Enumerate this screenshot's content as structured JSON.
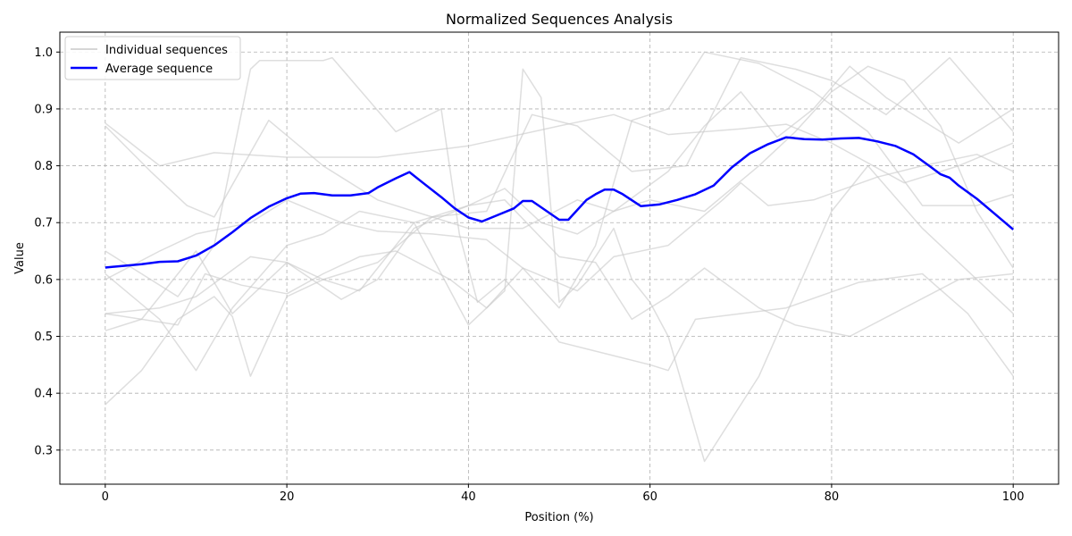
{
  "chart_data": {
    "type": "line",
    "title": "Normalized Sequences Analysis",
    "xlabel": "Position (%)",
    "ylabel": "Value",
    "xlim": [
      -5,
      105
    ],
    "ylim": [
      0.24,
      1.035
    ],
    "xticks": [
      0,
      20,
      40,
      60,
      80,
      100
    ],
    "yticks": [
      0.3,
      0.4,
      0.5,
      0.6,
      0.7,
      0.8,
      0.9,
      1.0
    ],
    "grid": true,
    "legend_position": "upper-left",
    "legend": [
      "Individual sequences",
      "Average sequence"
    ],
    "colors": {
      "individual": "#c8c8c8",
      "average": "#0000ff",
      "grid": "#b0b0b0"
    },
    "series": [
      {
        "values": [
          [
            0,
            0.875
          ],
          [
            6,
            0.8
          ],
          [
            12,
            0.823
          ],
          [
            20,
            0.815
          ],
          [
            30,
            0.815
          ],
          [
            40,
            0.835
          ],
          [
            50,
            0.87
          ],
          [
            56,
            0.89
          ],
          [
            62,
            0.855
          ],
          [
            70,
            0.865
          ],
          [
            75,
            0.873
          ],
          [
            80,
            0.84
          ],
          [
            88,
            0.77
          ],
          [
            94,
            0.8
          ],
          [
            100,
            0.84
          ]
        ]
      },
      {
        "values": [
          [
            0,
            0.87
          ],
          [
            5,
            0.79
          ],
          [
            9,
            0.73
          ],
          [
            12,
            0.71
          ],
          [
            18,
            0.88
          ],
          [
            24,
            0.8
          ],
          [
            30,
            0.74
          ],
          [
            36,
            0.71
          ],
          [
            42,
            0.72
          ],
          [
            47,
            0.89
          ],
          [
            52,
            0.87
          ],
          [
            58,
            0.79
          ],
          [
            64,
            0.8
          ],
          [
            70,
            0.99
          ],
          [
            76,
            0.97
          ],
          [
            80,
            0.95
          ],
          [
            86,
            0.89
          ],
          [
            93,
            0.99
          ],
          [
            100,
            0.86
          ]
        ]
      },
      {
        "values": [
          [
            0,
            0.65
          ],
          [
            8,
            0.57
          ],
          [
            12,
            0.66
          ],
          [
            16,
            0.97
          ],
          [
            17,
            0.985
          ],
          [
            24,
            0.985
          ],
          [
            25,
            0.99
          ],
          [
            32,
            0.86
          ],
          [
            37,
            0.9
          ],
          [
            39,
            0.68
          ],
          [
            41,
            0.56
          ],
          [
            44,
            0.6
          ],
          [
            49,
            0.51
          ],
          [
            50,
            0.49
          ],
          [
            55,
            0.47
          ],
          [
            60,
            0.45
          ],
          [
            62,
            0.44
          ],
          [
            65,
            0.53
          ],
          [
            75,
            0.55
          ],
          [
            83,
            0.595
          ],
          [
            90,
            0.61
          ],
          [
            95,
            0.54
          ],
          [
            100,
            0.43
          ]
        ]
      },
      {
        "values": [
          [
            0,
            0.54
          ],
          [
            4,
            0.53
          ],
          [
            8,
            0.52
          ],
          [
            11,
            0.61
          ],
          [
            15,
            0.59
          ],
          [
            20,
            0.575
          ],
          [
            24,
            0.61
          ],
          [
            28,
            0.64
          ],
          [
            32,
            0.65
          ],
          [
            38,
            0.6
          ],
          [
            42,
            0.55
          ],
          [
            46,
            0.62
          ],
          [
            52,
            0.58
          ],
          [
            56,
            0.64
          ],
          [
            62,
            0.66
          ],
          [
            68,
            0.74
          ],
          [
            70,
            0.77
          ],
          [
            73,
            0.73
          ],
          [
            78,
            0.74
          ],
          [
            85,
            0.78
          ],
          [
            90,
            0.8
          ],
          [
            96,
            0.82
          ],
          [
            100,
            0.79
          ]
        ]
      },
      {
        "values": [
          [
            0,
            0.38
          ],
          [
            4,
            0.44
          ],
          [
            8,
            0.53
          ],
          [
            12,
            0.57
          ],
          [
            14,
            0.535
          ],
          [
            16,
            0.43
          ],
          [
            20,
            0.57
          ],
          [
            24,
            0.6
          ],
          [
            28,
            0.58
          ],
          [
            30,
            0.62
          ],
          [
            34,
            0.7
          ],
          [
            40,
            0.52
          ],
          [
            44,
            0.58
          ],
          [
            46,
            0.97
          ],
          [
            48,
            0.92
          ],
          [
            50,
            0.56
          ],
          [
            52,
            0.59
          ],
          [
            56,
            0.69
          ],
          [
            58,
            0.6
          ],
          [
            60,
            0.56
          ],
          [
            62,
            0.5
          ],
          [
            66,
            0.28
          ],
          [
            72,
            0.43
          ],
          [
            80,
            0.72
          ],
          [
            84,
            0.8
          ],
          [
            90,
            0.69
          ],
          [
            100,
            0.54
          ]
        ]
      },
      {
        "values": [
          [
            0,
            0.51
          ],
          [
            4,
            0.53
          ],
          [
            10,
            0.65
          ],
          [
            14,
            0.54
          ],
          [
            20,
            0.63
          ],
          [
            26,
            0.565
          ],
          [
            30,
            0.6
          ],
          [
            34,
            0.69
          ],
          [
            40,
            0.73
          ],
          [
            44,
            0.74
          ],
          [
            50,
            0.64
          ],
          [
            54,
            0.63
          ],
          [
            58,
            0.53
          ],
          [
            62,
            0.57
          ],
          [
            66,
            0.62
          ],
          [
            72,
            0.55
          ],
          [
            76,
            0.52
          ],
          [
            82,
            0.5
          ],
          [
            88,
            0.55
          ],
          [
            94,
            0.6
          ],
          [
            100,
            0.61
          ]
        ]
      },
      {
        "values": [
          [
            0,
            0.61
          ],
          [
            6,
            0.53
          ],
          [
            10,
            0.44
          ],
          [
            14,
            0.55
          ],
          [
            20,
            0.66
          ],
          [
            24,
            0.68
          ],
          [
            28,
            0.72
          ],
          [
            34,
            0.7
          ],
          [
            40,
            0.73
          ],
          [
            44,
            0.76
          ],
          [
            48,
            0.7
          ],
          [
            52,
            0.68
          ],
          [
            56,
            0.72
          ],
          [
            60,
            0.74
          ],
          [
            66,
            0.72
          ],
          [
            72,
            0.8
          ],
          [
            76,
            0.86
          ],
          [
            80,
            0.93
          ],
          [
            84,
            0.975
          ],
          [
            88,
            0.95
          ],
          [
            92,
            0.87
          ],
          [
            96,
            0.72
          ],
          [
            100,
            0.62
          ]
        ]
      },
      {
        "values": [
          [
            0,
            0.54
          ],
          [
            6,
            0.55
          ],
          [
            10,
            0.57
          ],
          [
            16,
            0.64
          ],
          [
            20,
            0.63
          ],
          [
            24,
            0.6
          ],
          [
            30,
            0.63
          ],
          [
            36,
            0.71
          ],
          [
            40,
            0.69
          ],
          [
            46,
            0.69
          ],
          [
            52,
            0.74
          ],
          [
            56,
            0.72
          ],
          [
            62,
            0.79
          ],
          [
            66,
            0.87
          ],
          [
            70,
            0.93
          ],
          [
            74,
            0.85
          ],
          [
            78,
            0.9
          ],
          [
            82,
            0.975
          ],
          [
            86,
            0.92
          ],
          [
            90,
            0.88
          ],
          [
            94,
            0.84
          ],
          [
            100,
            0.9
          ]
        ]
      },
      {
        "values": [
          [
            0,
            0.6
          ],
          [
            6,
            0.65
          ],
          [
            10,
            0.68
          ],
          [
            16,
            0.7
          ],
          [
            20,
            0.74
          ],
          [
            26,
            0.7
          ],
          [
            30,
            0.685
          ],
          [
            36,
            0.68
          ],
          [
            42,
            0.67
          ],
          [
            46,
            0.62
          ],
          [
            50,
            0.55
          ],
          [
            54,
            0.66
          ],
          [
            58,
            0.88
          ],
          [
            62,
            0.9
          ],
          [
            66,
            1.0
          ],
          [
            72,
            0.98
          ],
          [
            78,
            0.93
          ],
          [
            84,
            0.86
          ],
          [
            90,
            0.73
          ],
          [
            96,
            0.73
          ],
          [
            100,
            0.75
          ]
        ]
      }
    ],
    "average": {
      "name": "Average sequence",
      "values": [
        [
          0,
          0.621
        ],
        [
          2,
          0.624
        ],
        [
          4,
          0.627
        ],
        [
          6,
          0.631
        ],
        [
          8,
          0.632
        ],
        [
          10,
          0.642
        ],
        [
          12,
          0.66
        ],
        [
          14,
          0.683
        ],
        [
          16,
          0.708
        ],
        [
          18,
          0.728
        ],
        [
          20,
          0.743
        ],
        [
          21.5,
          0.751
        ],
        [
          23,
          0.752
        ],
        [
          25,
          0.748
        ],
        [
          27,
          0.748
        ],
        [
          29,
          0.752
        ],
        [
          30,
          0.762
        ],
        [
          32,
          0.778
        ],
        [
          33.5,
          0.789
        ],
        [
          35,
          0.77
        ],
        [
          37,
          0.745
        ],
        [
          38.5,
          0.725
        ],
        [
          40,
          0.709
        ],
        [
          41.5,
          0.702
        ],
        [
          43,
          0.712
        ],
        [
          45,
          0.725
        ],
        [
          46,
          0.738
        ],
        [
          47,
          0.738
        ],
        [
          48,
          0.727
        ],
        [
          50,
          0.705
        ],
        [
          51,
          0.705
        ],
        [
          53,
          0.74
        ],
        [
          54,
          0.75
        ],
        [
          55,
          0.758
        ],
        [
          56,
          0.758
        ],
        [
          57,
          0.75
        ],
        [
          59,
          0.729
        ],
        [
          61,
          0.732
        ],
        [
          63,
          0.74
        ],
        [
          65,
          0.75
        ],
        [
          67,
          0.765
        ],
        [
          69,
          0.797
        ],
        [
          71,
          0.822
        ],
        [
          73,
          0.838
        ],
        [
          75,
          0.85
        ],
        [
          77,
          0.847
        ],
        [
          79,
          0.846
        ],
        [
          81,
          0.848
        ],
        [
          83,
          0.849
        ],
        [
          85,
          0.843
        ],
        [
          87,
          0.835
        ],
        [
          89,
          0.82
        ],
        [
          91,
          0.797
        ],
        [
          92,
          0.785
        ],
        [
          93,
          0.779
        ],
        [
          94,
          0.765
        ],
        [
          96,
          0.742
        ],
        [
          98,
          0.715
        ],
        [
          100,
          0.688
        ]
      ]
    }
  }
}
